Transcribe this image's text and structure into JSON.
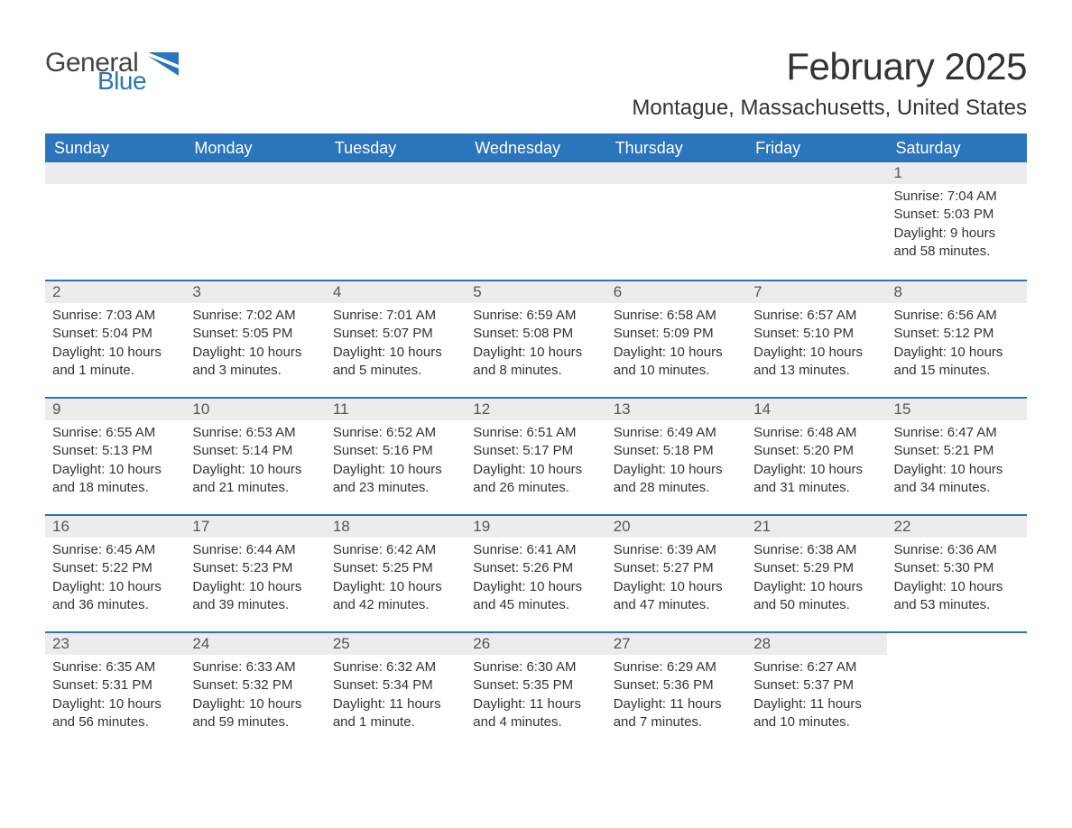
{
  "logo": {
    "word1": "General",
    "word2": "Blue"
  },
  "title": "February 2025",
  "location": "Montague, Massachusetts, United States",
  "header_color": "#2a75bb",
  "header_text_color": "#ffffff",
  "daynum_bg": "#ececec",
  "text_color": "#333333",
  "weekdays": [
    "Sunday",
    "Monday",
    "Tuesday",
    "Wednesday",
    "Thursday",
    "Friday",
    "Saturday"
  ],
  "weeks": [
    [
      {
        "empty": true
      },
      {
        "empty": true
      },
      {
        "empty": true
      },
      {
        "empty": true
      },
      {
        "empty": true
      },
      {
        "empty": true
      },
      {
        "num": "1",
        "sunrise": "Sunrise: 7:04 AM",
        "sunset": "Sunset: 5:03 PM",
        "daylight": "Daylight: 9 hours and 58 minutes."
      }
    ],
    [
      {
        "num": "2",
        "sunrise": "Sunrise: 7:03 AM",
        "sunset": "Sunset: 5:04 PM",
        "daylight": "Daylight: 10 hours and 1 minute."
      },
      {
        "num": "3",
        "sunrise": "Sunrise: 7:02 AM",
        "sunset": "Sunset: 5:05 PM",
        "daylight": "Daylight: 10 hours and 3 minutes."
      },
      {
        "num": "4",
        "sunrise": "Sunrise: 7:01 AM",
        "sunset": "Sunset: 5:07 PM",
        "daylight": "Daylight: 10 hours and 5 minutes."
      },
      {
        "num": "5",
        "sunrise": "Sunrise: 6:59 AM",
        "sunset": "Sunset: 5:08 PM",
        "daylight": "Daylight: 10 hours and 8 minutes."
      },
      {
        "num": "6",
        "sunrise": "Sunrise: 6:58 AM",
        "sunset": "Sunset: 5:09 PM",
        "daylight": "Daylight: 10 hours and 10 minutes."
      },
      {
        "num": "7",
        "sunrise": "Sunrise: 6:57 AM",
        "sunset": "Sunset: 5:10 PM",
        "daylight": "Daylight: 10 hours and 13 minutes."
      },
      {
        "num": "8",
        "sunrise": "Sunrise: 6:56 AM",
        "sunset": "Sunset: 5:12 PM",
        "daylight": "Daylight: 10 hours and 15 minutes."
      }
    ],
    [
      {
        "num": "9",
        "sunrise": "Sunrise: 6:55 AM",
        "sunset": "Sunset: 5:13 PM",
        "daylight": "Daylight: 10 hours and 18 minutes."
      },
      {
        "num": "10",
        "sunrise": "Sunrise: 6:53 AM",
        "sunset": "Sunset: 5:14 PM",
        "daylight": "Daylight: 10 hours and 21 minutes."
      },
      {
        "num": "11",
        "sunrise": "Sunrise: 6:52 AM",
        "sunset": "Sunset: 5:16 PM",
        "daylight": "Daylight: 10 hours and 23 minutes."
      },
      {
        "num": "12",
        "sunrise": "Sunrise: 6:51 AM",
        "sunset": "Sunset: 5:17 PM",
        "daylight": "Daylight: 10 hours and 26 minutes."
      },
      {
        "num": "13",
        "sunrise": "Sunrise: 6:49 AM",
        "sunset": "Sunset: 5:18 PM",
        "daylight": "Daylight: 10 hours and 28 minutes."
      },
      {
        "num": "14",
        "sunrise": "Sunrise: 6:48 AM",
        "sunset": "Sunset: 5:20 PM",
        "daylight": "Daylight: 10 hours and 31 minutes."
      },
      {
        "num": "15",
        "sunrise": "Sunrise: 6:47 AM",
        "sunset": "Sunset: 5:21 PM",
        "daylight": "Daylight: 10 hours and 34 minutes."
      }
    ],
    [
      {
        "num": "16",
        "sunrise": "Sunrise: 6:45 AM",
        "sunset": "Sunset: 5:22 PM",
        "daylight": "Daylight: 10 hours and 36 minutes."
      },
      {
        "num": "17",
        "sunrise": "Sunrise: 6:44 AM",
        "sunset": "Sunset: 5:23 PM",
        "daylight": "Daylight: 10 hours and 39 minutes."
      },
      {
        "num": "18",
        "sunrise": "Sunrise: 6:42 AM",
        "sunset": "Sunset: 5:25 PM",
        "daylight": "Daylight: 10 hours and 42 minutes."
      },
      {
        "num": "19",
        "sunrise": "Sunrise: 6:41 AM",
        "sunset": "Sunset: 5:26 PM",
        "daylight": "Daylight: 10 hours and 45 minutes."
      },
      {
        "num": "20",
        "sunrise": "Sunrise: 6:39 AM",
        "sunset": "Sunset: 5:27 PM",
        "daylight": "Daylight: 10 hours and 47 minutes."
      },
      {
        "num": "21",
        "sunrise": "Sunrise: 6:38 AM",
        "sunset": "Sunset: 5:29 PM",
        "daylight": "Daylight: 10 hours and 50 minutes."
      },
      {
        "num": "22",
        "sunrise": "Sunrise: 6:36 AM",
        "sunset": "Sunset: 5:30 PM",
        "daylight": "Daylight: 10 hours and 53 minutes."
      }
    ],
    [
      {
        "num": "23",
        "sunrise": "Sunrise: 6:35 AM",
        "sunset": "Sunset: 5:31 PM",
        "daylight": "Daylight: 10 hours and 56 minutes."
      },
      {
        "num": "24",
        "sunrise": "Sunrise: 6:33 AM",
        "sunset": "Sunset: 5:32 PM",
        "daylight": "Daylight: 10 hours and 59 minutes."
      },
      {
        "num": "25",
        "sunrise": "Sunrise: 6:32 AM",
        "sunset": "Sunset: 5:34 PM",
        "daylight": "Daylight: 11 hours and 1 minute."
      },
      {
        "num": "26",
        "sunrise": "Sunrise: 6:30 AM",
        "sunset": "Sunset: 5:35 PM",
        "daylight": "Daylight: 11 hours and 4 minutes."
      },
      {
        "num": "27",
        "sunrise": "Sunrise: 6:29 AM",
        "sunset": "Sunset: 5:36 PM",
        "daylight": "Daylight: 11 hours and 7 minutes."
      },
      {
        "num": "28",
        "sunrise": "Sunrise: 6:27 AM",
        "sunset": "Sunset: 5:37 PM",
        "daylight": "Daylight: 11 hours and 10 minutes."
      },
      {
        "empty": true,
        "noBar": true
      }
    ]
  ]
}
